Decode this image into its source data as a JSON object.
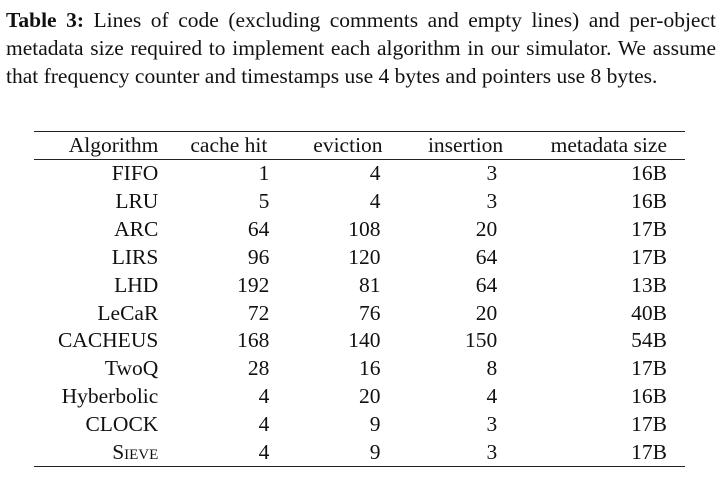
{
  "caption": {
    "label": "Table 3:",
    "text": " Lines of code (excluding comments and empty lines) and per-object metadata size required to implement each algorithm in our simulator. We assume that frequency counter and timestamps use 4 bytes and pointers use 8 bytes."
  },
  "table": {
    "headers": [
      "Algorithm",
      "cache hit",
      "eviction",
      "insertion",
      "metadata size"
    ],
    "rows": [
      [
        "FIFO",
        "1",
        "4",
        "3",
        "16B"
      ],
      [
        "LRU",
        "5",
        "4",
        "3",
        "16B"
      ],
      [
        "ARC",
        "64",
        "108",
        "20",
        "17B"
      ],
      [
        "LIRS",
        "96",
        "120",
        "64",
        "17B"
      ],
      [
        "LHD",
        "192",
        "81",
        "64",
        "13B"
      ],
      [
        "LeCaR",
        "72",
        "76",
        "20",
        "40B"
      ],
      [
        "CACHEUS",
        "168",
        "140",
        "150",
        "54B"
      ],
      [
        "TwoQ",
        "28",
        "16",
        "8",
        "17B"
      ],
      [
        "Hyberbolic",
        "4",
        "20",
        "4",
        "16B"
      ],
      [
        "CLOCK",
        "4",
        "9",
        "3",
        "17B"
      ],
      [
        "Sieve",
        "4",
        "9",
        "3",
        "17B"
      ]
    ]
  }
}
